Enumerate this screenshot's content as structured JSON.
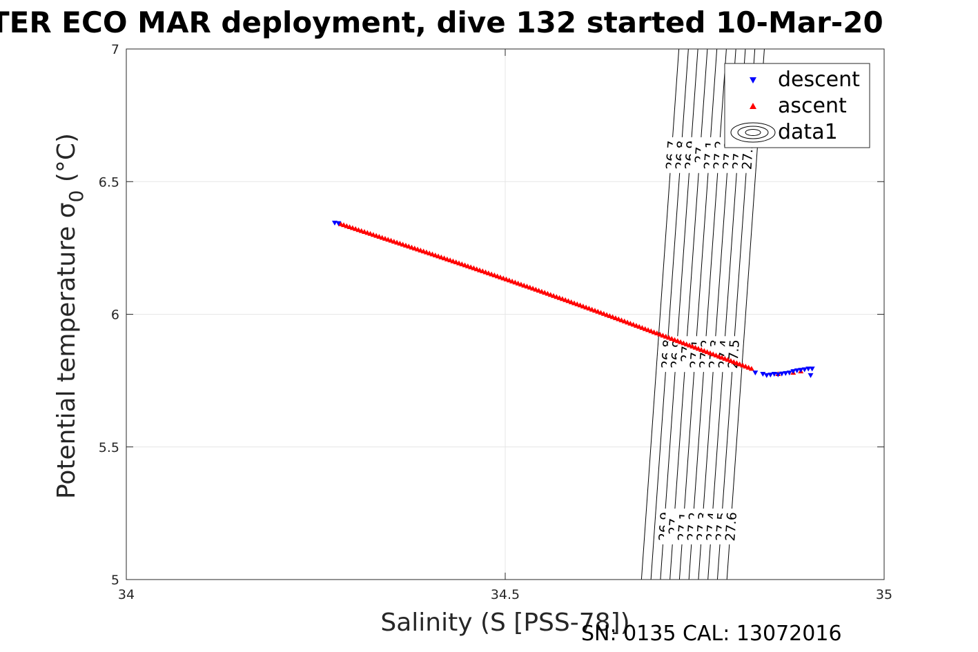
{
  "chart_data": {
    "type": "scatter",
    "title": "TER ECO MAR deployment, dive 132 started 10-Mar-20",
    "xlabel": "Salinity (S [PSS-78])",
    "ylabel": "Potential temperature σ0 (°C)",
    "xlim": [
      34,
      35
    ],
    "ylim": [
      5,
      7
    ],
    "xticks": [
      "34",
      "34.5",
      "35"
    ],
    "yticks": [
      "5",
      "5.5",
      "6",
      "6.5",
      "7"
    ],
    "grid": true,
    "legend_position": "top-right",
    "legend": [
      "descent",
      "ascent",
      "data1"
    ],
    "footnote": "SN: 0135  CAL: 13072016",
    "colors": {
      "descent": "#0000ff",
      "ascent": "#ff0000",
      "contour": "#000000",
      "grid": "#e6e6e6"
    },
    "isopycnals": {
      "levels": [
        "26.7",
        "26.8",
        "26.9",
        "27",
        "27.1",
        "27.2",
        "27.3",
        "27.4",
        "27.5",
        "27.6"
      ],
      "top_labels": [
        "26.7",
        "26.8",
        "26.9",
        "27",
        "27.1",
        "27.2",
        "27.3",
        "27.4",
        "27.5"
      ],
      "middle_labels": [
        "26.8",
        "26.9",
        "27",
        "27.1",
        "27.2",
        "27.3",
        "27.4",
        "27.5"
      ],
      "bottom_labels": [
        "26.9",
        "27",
        "27.1",
        "27.2",
        "27.3",
        "27.4",
        "27.5",
        "27.6"
      ]
    },
    "series": [
      {
        "name": "descent",
        "marker": "triangle-down",
        "x": [
          34.275,
          34.28,
          34.83,
          34.84,
          34.845,
          34.85,
          34.855,
          34.86,
          34.865,
          34.87,
          34.875,
          34.88,
          34.885,
          34.89,
          34.895,
          34.9,
          34.905,
          34.903
        ],
        "y": [
          6.345,
          6.343,
          5.78,
          5.775,
          5.77,
          5.772,
          5.775,
          5.773,
          5.776,
          5.778,
          5.78,
          5.785,
          5.788,
          5.79,
          5.792,
          5.795,
          5.795,
          5.77
        ]
      },
      {
        "name": "ascent",
        "marker": "triangle-up",
        "x_start": 34.283,
        "y_start": 6.34,
        "x_end": 34.825,
        "y_end": 5.795,
        "count": 140,
        "extra_x": [
          34.86,
          34.88,
          34.89
        ],
        "extra_y": [
          5.775,
          5.78,
          5.785
        ]
      }
    ]
  }
}
